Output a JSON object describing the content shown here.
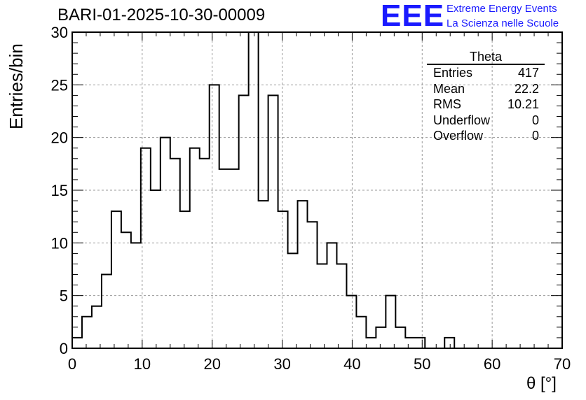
{
  "chart_data": {
    "type": "histogram",
    "title": "BARI-01-2025-10-30-00009",
    "xlabel": "θ [°]",
    "ylabel": "Entries/bin",
    "xlim": [
      0,
      70
    ],
    "ylim": [
      0,
      30
    ],
    "x_ticks": [
      "0",
      "10",
      "20",
      "30",
      "40",
      "50",
      "60",
      "70"
    ],
    "y_ticks": [
      "0",
      "5",
      "10",
      "15",
      "20",
      "25",
      "30"
    ],
    "bin_width": 1.4,
    "bin_edges_start": 0,
    "values": [
      1,
      3,
      4,
      7,
      13,
      11,
      10,
      19,
      15,
      20,
      18,
      13,
      19,
      18,
      25,
      17,
      17,
      24,
      30,
      14,
      24,
      13,
      9,
      14,
      12,
      8,
      10,
      8,
      5,
      3,
      1,
      2,
      5,
      2,
      1,
      1,
      0,
      0,
      1,
      0
    ],
    "grid": true,
    "stats_box": {
      "title": "Theta",
      "rows": [
        {
          "label": "Entries",
          "value": "417"
        },
        {
          "label": "Mean",
          "value": "22.2"
        },
        {
          "label": "RMS",
          "value": "10.21"
        },
        {
          "label": "Underflow",
          "value": "0"
        },
        {
          "label": "Overflow",
          "value": "0"
        }
      ]
    }
  },
  "branding": {
    "logo": "EEE",
    "line1": "Extreme Energy Events",
    "line2": "La Scienza nelle Scuole",
    "color": "#1a1aff"
  }
}
